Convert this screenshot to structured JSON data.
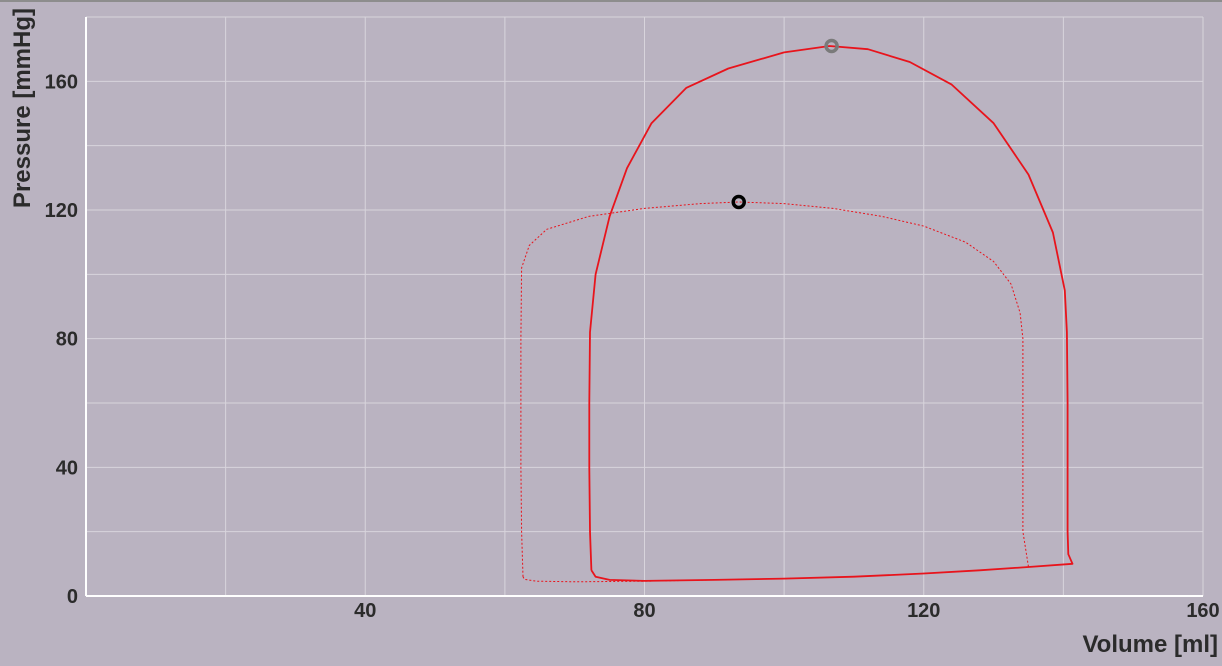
{
  "chart_data": {
    "type": "line",
    "title": "",
    "xlabel": "Volume [ml]",
    "ylabel": "Pressure [mmHg]",
    "xlim": [
      0,
      160
    ],
    "ylim": [
      0,
      180
    ],
    "x_ticks": [
      40,
      80,
      120,
      160
    ],
    "y_ticks": [
      0,
      40,
      80,
      120,
      160
    ],
    "x_tick_labels": [
      "40",
      "80",
      "120",
      "160"
    ],
    "y_tick_labels": [
      "0",
      "40",
      "80",
      "120",
      "160"
    ],
    "grid": true,
    "legend": "none",
    "colors": {
      "background": "#bab3c1",
      "grid": "#d8d4dc",
      "axis": "#ffffff",
      "series": "#e8141c",
      "marker_current": "#000000",
      "marker_reference": "#7a7a7a"
    },
    "series": [
      {
        "style": "solid",
        "points": [
          [
            72.4,
            8
          ],
          [
            72.2,
            20
          ],
          [
            72.1,
            40
          ],
          [
            72.1,
            60
          ],
          [
            72.2,
            82
          ],
          [
            73,
            100
          ],
          [
            75,
            118
          ],
          [
            77.5,
            133
          ],
          [
            81,
            147
          ],
          [
            86,
            158
          ],
          [
            92,
            164
          ],
          [
            100,
            169
          ],
          [
            106.5,
            171
          ],
          [
            112,
            170
          ],
          [
            118,
            166
          ],
          [
            124,
            159
          ],
          [
            130,
            147
          ],
          [
            135,
            131
          ],
          [
            138.5,
            113
          ],
          [
            140.2,
            95
          ],
          [
            140.5,
            82
          ],
          [
            140.6,
            60
          ],
          [
            140.6,
            40
          ],
          [
            140.6,
            20
          ],
          [
            140.7,
            13
          ],
          [
            141.3,
            10
          ],
          [
            135,
            9
          ],
          [
            128,
            8
          ],
          [
            120,
            7
          ],
          [
            110,
            6
          ],
          [
            100,
            5.4
          ],
          [
            90,
            5
          ],
          [
            80,
            4.7
          ],
          [
            75,
            5
          ],
          [
            73,
            6
          ],
          [
            72.4,
            8
          ]
        ]
      },
      {
        "style": "dashed",
        "points": [
          [
            62.6,
            6
          ],
          [
            62.4,
            20
          ],
          [
            62.3,
            40
          ],
          [
            62.3,
            60
          ],
          [
            62.3,
            80
          ],
          [
            62.4,
            102
          ],
          [
            63.5,
            109
          ],
          [
            66,
            114
          ],
          [
            72,
            118
          ],
          [
            80,
            120.5
          ],
          [
            88,
            122
          ],
          [
            93.5,
            122.5
          ],
          [
            100,
            122
          ],
          [
            107,
            120.5
          ],
          [
            114,
            118
          ],
          [
            120,
            115
          ],
          [
            126,
            110
          ],
          [
            130,
            104
          ],
          [
            132.5,
            97
          ],
          [
            133.8,
            88
          ],
          [
            134.2,
            80
          ],
          [
            134.2,
            60
          ],
          [
            134.2,
            40
          ],
          [
            134.2,
            20
          ],
          [
            135,
            9
          ],
          [
            128,
            8
          ],
          [
            120,
            7
          ],
          [
            110,
            6
          ],
          [
            100,
            5.4
          ],
          [
            90,
            5
          ],
          [
            80,
            4.6
          ],
          [
            70,
            4.4
          ],
          [
            64.5,
            4.6
          ],
          [
            62.8,
            5.2
          ],
          [
            62.6,
            6
          ]
        ]
      }
    ],
    "markers": [
      {
        "x": 93.5,
        "y": 122.5,
        "color": "#000000"
      },
      {
        "x": 106.8,
        "y": 171,
        "color": "#7a7a7a"
      }
    ]
  }
}
